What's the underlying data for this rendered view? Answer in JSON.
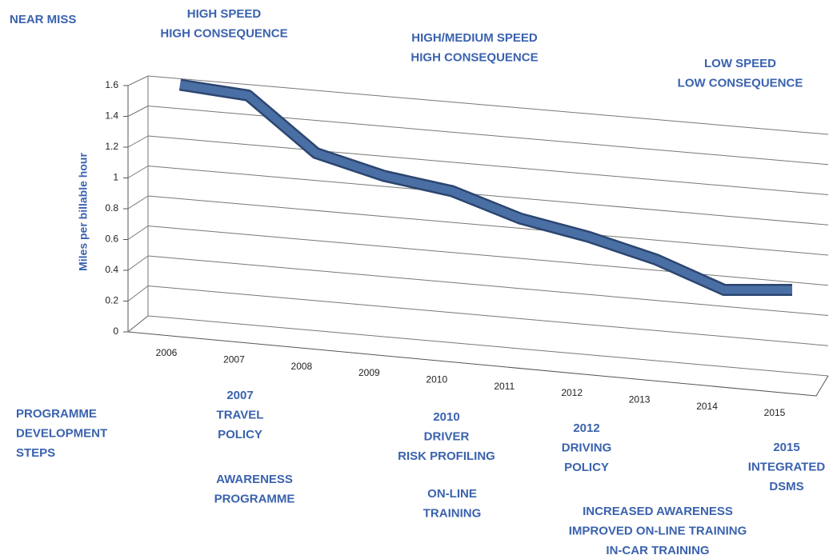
{
  "chart_data": {
    "type": "line",
    "y_label": "Miles per billable hour",
    "categories": [
      "2006",
      "2007",
      "2008",
      "2009",
      "2010",
      "2011",
      "2012",
      "2013",
      "2014",
      "2015"
    ],
    "series": [
      {
        "name": "Miles per billable hour",
        "color": "#4a6fa5",
        "values": [
          1.6,
          1.53,
          1.15,
          1.0,
          0.9,
          0.72,
          0.6,
          0.45,
          0.25,
          0.25
        ]
      }
    ],
    "ylim": [
      0,
      1.6
    ],
    "yticks": [
      0,
      0.2,
      0.4,
      0.6,
      0.8,
      1,
      1.2,
      1.4,
      1.6
    ],
    "grid": true,
    "annotations": [
      {
        "lines": [
          "NEAR MISS"
        ]
      },
      {
        "lines": [
          "HIGH SPEED",
          "HIGH CONSEQUENCE"
        ]
      },
      {
        "lines": [
          "HIGH/MEDIUM SPEED",
          "HIGH CONSEQUENCE"
        ]
      },
      {
        "lines": [
          "LOW SPEED",
          "LOW CONSEQUENCE"
        ]
      },
      {
        "lines": [
          "PROGRAMME",
          "DEVELOPMENT",
          "STEPS"
        ]
      },
      {
        "lines": [
          "2007",
          "TRAVEL",
          "POLICY"
        ]
      },
      {
        "lines": [
          "AWARENESS",
          "PROGRAMME"
        ]
      },
      {
        "lines": [
          "2010",
          "DRIVER",
          "RISK PROFILING"
        ]
      },
      {
        "lines": [
          "ON-LINE",
          "TRAINING"
        ]
      },
      {
        "lines": [
          "2012",
          "DRIVING",
          "POLICY"
        ]
      },
      {
        "lines": [
          "2015",
          "INTEGRATED",
          "DSMS"
        ]
      },
      {
        "lines": [
          "INCREASED AWARENESS",
          "IMPROVED ON-LINE TRAINING",
          "IN-CAR TRAINING"
        ]
      }
    ]
  }
}
